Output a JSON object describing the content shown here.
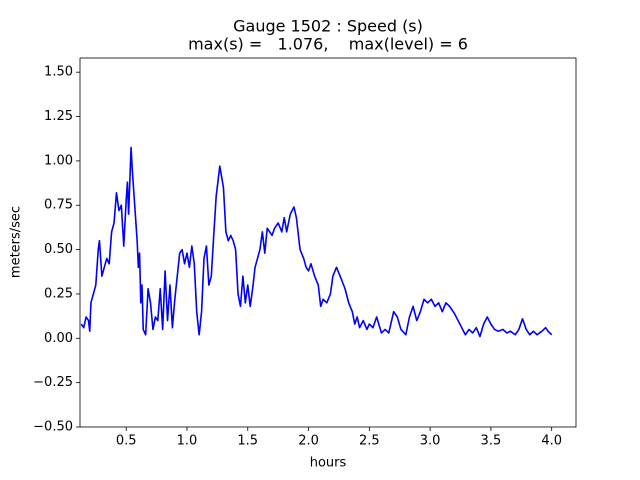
{
  "chart_data": {
    "type": "line",
    "title": "Gauge 1502 : Speed (s)",
    "subtitle": "max(s) =   1.076,    max(level) = 6",
    "xlabel": "hours",
    "ylabel": "meters/sec",
    "xlim": [
      0.12,
      4.2
    ],
    "ylim": [
      -0.5,
      1.58
    ],
    "xticks": [
      0.5,
      {
        "value": 1.0,
        "label": "1.0"
      },
      1.5,
      {
        "value": 2.0,
        "label": "2.0"
      },
      2.5,
      {
        "value": 3.0,
        "label": "3.0"
      },
      3.5,
      {
        "value": 4.0,
        "label": "4.0"
      }
    ],
    "yticks": [
      {
        "value": -0.5,
        "label": "−0.50"
      },
      {
        "value": -0.25,
        "label": "−0.25"
      },
      {
        "value": 0,
        "label": "0.00"
      },
      0.25,
      {
        "value": 0.5,
        "label": "0.50"
      },
      0.75,
      {
        "value": 1,
        "label": "1.00"
      },
      1.25,
      {
        "value": 1.5,
        "label": "1.50"
      }
    ],
    "x": [
      0.13,
      0.15,
      0.17,
      0.19,
      0.2,
      0.21,
      0.23,
      0.25,
      0.27,
      0.28,
      0.3,
      0.32,
      0.34,
      0.36,
      0.38,
      0.4,
      0.42,
      0.44,
      0.46,
      0.48,
      0.5,
      0.51,
      0.52,
      0.54,
      0.55,
      0.57,
      0.59,
      0.6,
      0.61,
      0.62,
      0.63,
      0.64,
      0.66,
      0.68,
      0.7,
      0.72,
      0.74,
      0.76,
      0.78,
      0.8,
      0.82,
      0.84,
      0.86,
      0.88,
      0.9,
      0.92,
      0.94,
      0.96,
      0.98,
      1.0,
      1.02,
      1.04,
      1.06,
      1.08,
      1.1,
      1.12,
      1.14,
      1.16,
      1.18,
      1.2,
      1.22,
      1.24,
      1.27,
      1.3,
      1.32,
      1.34,
      1.36,
      1.38,
      1.4,
      1.42,
      1.44,
      1.46,
      1.48,
      1.5,
      1.52,
      1.54,
      1.56,
      1.58,
      1.6,
      1.62,
      1.64,
      1.66,
      1.7,
      1.72,
      1.75,
      1.78,
      1.8,
      1.82,
      1.85,
      1.88,
      1.9,
      1.93,
      1.96,
      1.98,
      2.0,
      2.02,
      2.05,
      2.08,
      2.1,
      2.12,
      2.15,
      2.18,
      2.2,
      2.23,
      2.26,
      2.3,
      2.33,
      2.36,
      2.38,
      2.4,
      2.42,
      2.45,
      2.48,
      2.5,
      2.53,
      2.56,
      2.6,
      2.63,
      2.66,
      2.7,
      2.73,
      2.76,
      2.8,
      2.83,
      2.86,
      2.89,
      2.92,
      2.95,
      2.98,
      3.01,
      3.04,
      3.07,
      3.1,
      3.13,
      3.16,
      3.2,
      3.23,
      3.26,
      3.29,
      3.32,
      3.35,
      3.38,
      3.41,
      3.44,
      3.47,
      3.5,
      3.53,
      3.56,
      3.6,
      3.63,
      3.66,
      3.7,
      3.73,
      3.76,
      3.79,
      3.82,
      3.85,
      3.88,
      3.92,
      3.95,
      3.97,
      4.0
    ],
    "series": [
      {
        "color": "#0000ff",
        "values": [
          0.08,
          0.06,
          0.12,
          0.1,
          0.04,
          0.2,
          0.25,
          0.3,
          0.5,
          0.55,
          0.35,
          0.4,
          0.45,
          0.42,
          0.6,
          0.65,
          0.82,
          0.72,
          0.75,
          0.52,
          0.78,
          0.88,
          0.7,
          1.076,
          0.95,
          0.75,
          0.55,
          0.4,
          0.48,
          0.2,
          0.3,
          0.05,
          0.02,
          0.28,
          0.2,
          0.05,
          0.12,
          0.1,
          0.28,
          0.05,
          0.38,
          0.1,
          0.3,
          0.06,
          0.22,
          0.35,
          0.48,
          0.5,
          0.42,
          0.48,
          0.4,
          0.52,
          0.42,
          0.15,
          0.02,
          0.15,
          0.45,
          0.52,
          0.3,
          0.35,
          0.58,
          0.8,
          0.97,
          0.85,
          0.6,
          0.55,
          0.58,
          0.55,
          0.5,
          0.25,
          0.18,
          0.35,
          0.2,
          0.3,
          0.18,
          0.28,
          0.4,
          0.45,
          0.5,
          0.6,
          0.48,
          0.62,
          0.58,
          0.62,
          0.65,
          0.6,
          0.68,
          0.6,
          0.7,
          0.74,
          0.68,
          0.5,
          0.45,
          0.4,
          0.38,
          0.42,
          0.35,
          0.3,
          0.18,
          0.22,
          0.2,
          0.25,
          0.35,
          0.4,
          0.35,
          0.28,
          0.2,
          0.15,
          0.08,
          0.12,
          0.06,
          0.1,
          0.05,
          0.08,
          0.06,
          0.12,
          0.03,
          0.05,
          0.03,
          0.15,
          0.12,
          0.05,
          0.02,
          0.12,
          0.18,
          0.1,
          0.15,
          0.22,
          0.2,
          0.22,
          0.18,
          0.2,
          0.15,
          0.2,
          0.18,
          0.14,
          0.1,
          0.06,
          0.02,
          0.05,
          0.03,
          0.06,
          0.01,
          0.08,
          0.12,
          0.08,
          0.05,
          0.04,
          0.05,
          0.03,
          0.04,
          0.02,
          0.05,
          0.11,
          0.05,
          0.02,
          0.04,
          0.02,
          0.04,
          0.06,
          0.04,
          0.02
        ]
      }
    ]
  }
}
